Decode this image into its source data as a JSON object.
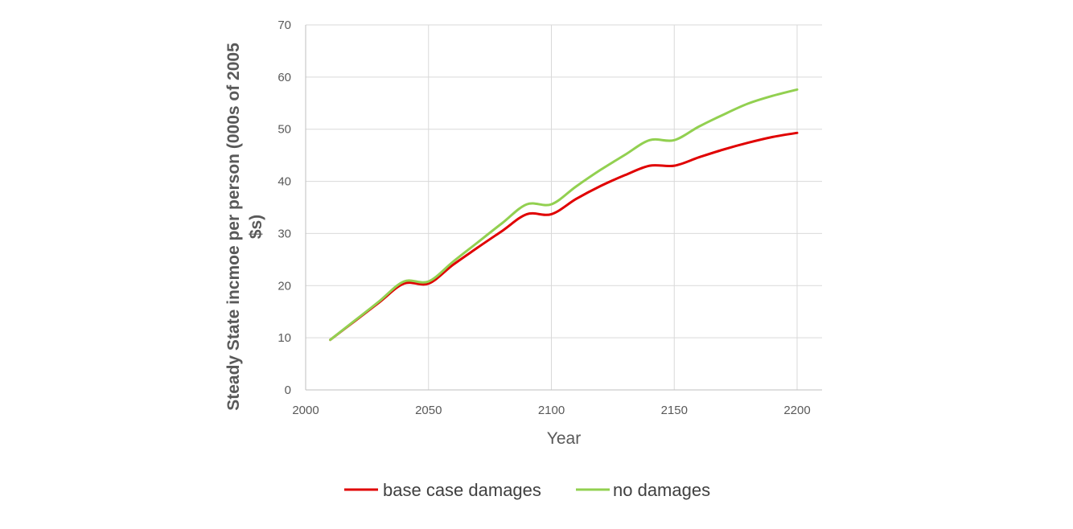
{
  "chart_data": {
    "type": "line",
    "title": "",
    "xlabel": "Year",
    "ylabel_lines": [
      "Steady State incmoe per person (000s of 2005",
      "$s)"
    ],
    "xlim": [
      2000,
      2200
    ],
    "ylim": [
      0,
      70
    ],
    "xticks": [
      2000,
      2050,
      2100,
      2150,
      2200
    ],
    "yticks": [
      0,
      10,
      20,
      30,
      40,
      50,
      60,
      70
    ],
    "grid": true,
    "legend_position": "bottom",
    "series": [
      {
        "name": "base case damages",
        "color": "#e00000",
        "x": [
          2010,
          2020,
          2030,
          2040,
          2050,
          2060,
          2070,
          2080,
          2090,
          2100,
          2110,
          2120,
          2130,
          2140,
          2150,
          2160,
          2170,
          2180,
          2190,
          2200
        ],
        "y": [
          9.6,
          13.2,
          16.8,
          20.4,
          20.4,
          24.0,
          27.3,
          30.5,
          33.7,
          33.7,
          36.6,
          39.1,
          41.2,
          43.0,
          43.0,
          44.6,
          46.1,
          47.4,
          48.5,
          49.3
        ]
      },
      {
        "name": "no damages",
        "color": "#92d050",
        "x": [
          2010,
          2020,
          2030,
          2040,
          2050,
          2060,
          2070,
          2080,
          2090,
          2100,
          2110,
          2120,
          2130,
          2140,
          2150,
          2160,
          2170,
          2180,
          2190,
          2200
        ],
        "y": [
          9.6,
          13.3,
          17.0,
          20.8,
          20.8,
          24.6,
          28.3,
          32.0,
          35.6,
          35.6,
          39.0,
          42.2,
          45.1,
          47.9,
          47.9,
          50.5,
          52.8,
          54.9,
          56.4,
          57.6
        ]
      }
    ]
  }
}
